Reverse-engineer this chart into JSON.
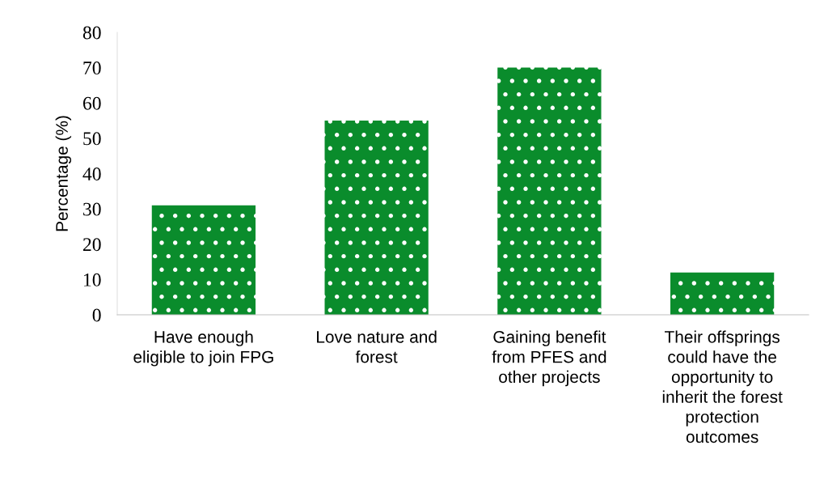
{
  "chart_data": {
    "type": "bar",
    "ylabel": "Percentage (%)",
    "categories": [
      "Have enough\neligible to join FPG",
      "Love nature and\nforest",
      "Gaining benefit\nfrom PFES and\nother projects",
      "Their offsprings\ncould have the\nopportunity to\ninherit the forest\nprotection\noutcomes"
    ],
    "values": [
      31,
      55,
      70,
      12
    ],
    "color": "#0a8c2c",
    "ylim": [
      0,
      80
    ],
    "yticks": [
      0,
      10,
      20,
      30,
      40,
      50,
      60,
      70,
      80
    ],
    "grid": false,
    "legend": false
  }
}
